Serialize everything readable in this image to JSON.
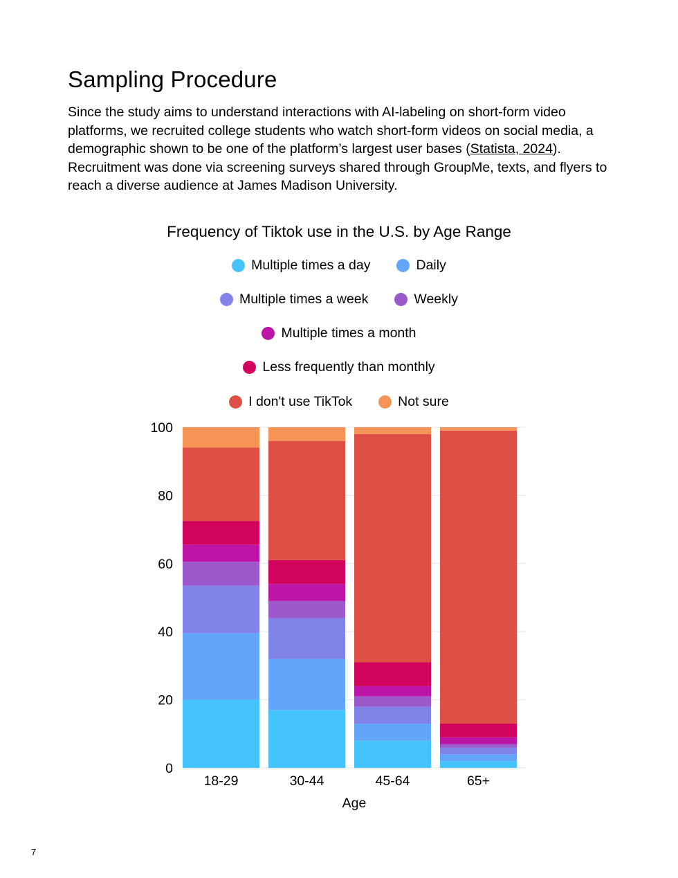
{
  "section": {
    "heading": "Sampling Procedure",
    "paragraph_part1": "Since the study aims to understand interactions with AI-labeling on short-form video platforms, we recruited college students who watch short-form videos on social media, a demographic shown to be one of the platform’s largest user bases (",
    "citation_link": "Statista, 2024",
    "paragraph_part2": "). Recruitment was done via screening surveys shared through GroupMe, texts, and flyers to reach a diverse audience at James Madison University."
  },
  "colors": {
    "multiple_day": "#45c4fb",
    "daily": "#63a5f8",
    "multiple_week": "#8183e8",
    "weekly": "#9b59cc",
    "multiple_month": "#bc15a6",
    "less_monthly": "#d1035d",
    "dont_use": "#de5046",
    "not_sure": "#f59456"
  },
  "chart_data": {
    "type": "bar",
    "stacked": true,
    "title": "Frequency of Tiktok use in the U.S. by Age Range",
    "xlabel": "Age",
    "ylabel": "",
    "ylim": [
      0,
      100
    ],
    "yticks": [
      "0",
      "20",
      "40",
      "60",
      "80",
      "100"
    ],
    "grid": true,
    "legend_position": "top",
    "categories": [
      "18-29",
      "30-44",
      "45-64",
      "65+"
    ],
    "series": [
      {
        "name": "Multiple times a day",
        "color_key": "multiple_day",
        "values": [
          20,
          17,
          8,
          2
        ]
      },
      {
        "name": "Daily",
        "color_key": "daily",
        "values": [
          19.5,
          15,
          5,
          2
        ]
      },
      {
        "name": "Multiple times a week",
        "color_key": "multiple_week",
        "values": [
          14,
          12,
          5,
          2
        ]
      },
      {
        "name": "Weekly",
        "color_key": "weekly",
        "values": [
          7,
          5,
          3,
          1
        ]
      },
      {
        "name": "Multiple times a month",
        "color_key": "multiple_month",
        "values": [
          5,
          5,
          3,
          2
        ]
      },
      {
        "name": "Less frequently than monthly",
        "color_key": "less_monthly",
        "values": [
          7,
          7,
          7,
          4
        ]
      },
      {
        "name": "I don't use TikTok",
        "color_key": "dont_use",
        "values": [
          21.5,
          35,
          67,
          86
        ]
      },
      {
        "name": "Not sure",
        "color_key": "not_sure",
        "values": [
          6,
          4,
          2,
          1
        ]
      }
    ]
  },
  "page_number": "7"
}
